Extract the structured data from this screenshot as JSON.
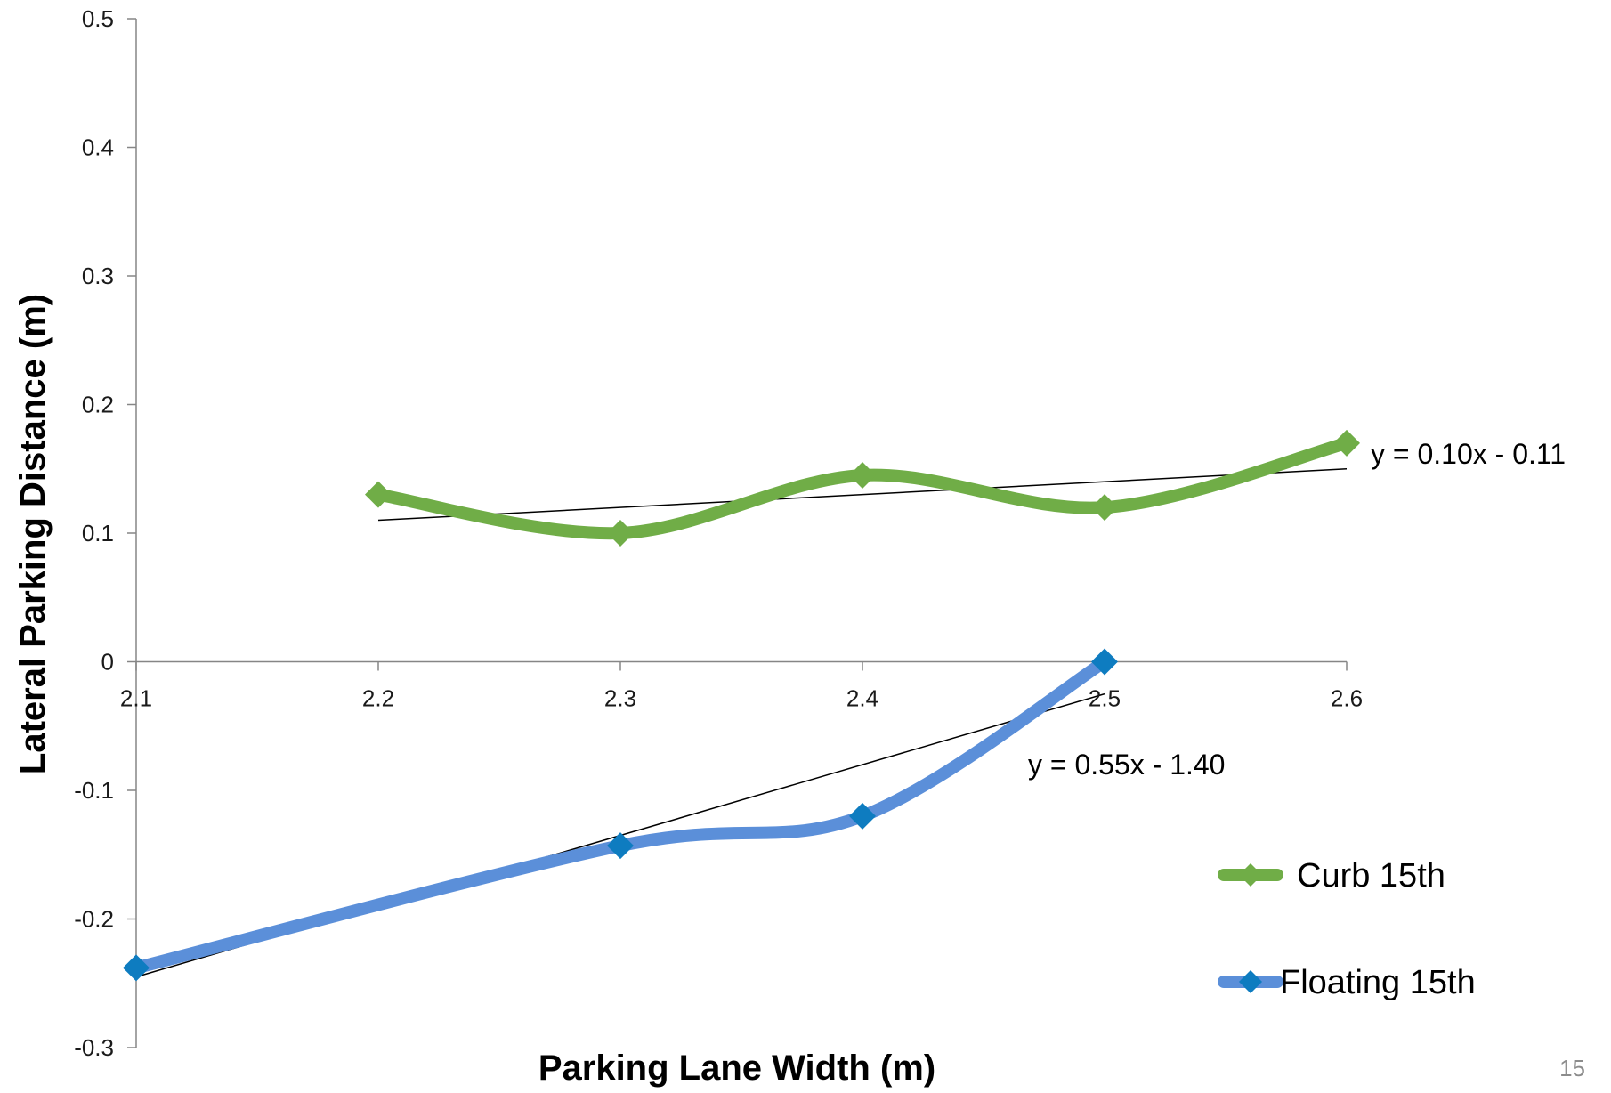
{
  "chart_data": {
    "type": "line",
    "title": "",
    "xlabel": "Parking Lane Width (m)",
    "ylabel": "Lateral Parking Distance (m)",
    "xlim": [
      2.1,
      2.6
    ],
    "ylim": [
      -0.3,
      0.5
    ],
    "x_ticks": [
      "2.1",
      "2.2",
      "2.3",
      "2.4",
      "2.5",
      "2.6"
    ],
    "y_ticks": [
      "0.5",
      "0.4",
      "0.3",
      "0.2",
      "0.1",
      "0",
      "-0.1",
      "-0.2",
      "-0.3"
    ],
    "grid": false,
    "legend_position": "bottom-right",
    "series": [
      {
        "name": "Curb 15th",
        "color": "#70ad47",
        "marker_color": "#70ad47",
        "marker": "diamond",
        "smooth": true,
        "x": [
          2.2,
          2.3,
          2.4,
          2.5,
          2.6
        ],
        "y": [
          0.13,
          0.1,
          0.145,
          0.12,
          0.17
        ],
        "trendline": {
          "slope": 0.1,
          "intercept": -0.11,
          "x_range": [
            2.2,
            2.6
          ],
          "equation": "y = 0.10x - 0.11"
        }
      },
      {
        "name": "Floating 15th",
        "color": "#5b8fd9",
        "marker_color": "#0e7cc0",
        "marker": "diamond",
        "smooth": true,
        "x": [
          2.1,
          2.3,
          2.4,
          2.5
        ],
        "y": [
          -0.238,
          -0.143,
          -0.12,
          0.0
        ],
        "trendline": {
          "slope": 0.55,
          "intercept": -1.4,
          "x_range": [
            2.1,
            2.5
          ],
          "equation": "y = 0.55x - 1.40"
        }
      }
    ]
  },
  "slide": {
    "page_number": "15"
  }
}
